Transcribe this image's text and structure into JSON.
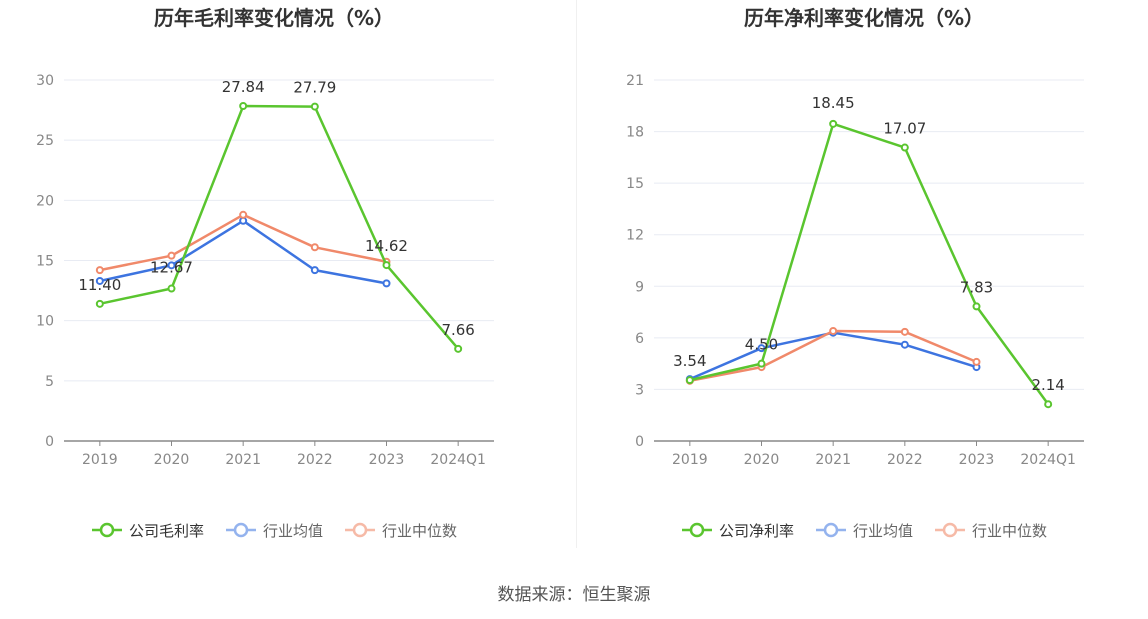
{
  "colors": {
    "company": "#5ac52f",
    "industry_avg": "#3d74e0",
    "industry_median": "#f0896a",
    "legend_avg": "#94b3ee",
    "legend_median": "#f6baa7",
    "axis": "#888888",
    "grid": "#e8ebf3",
    "label": "#333333"
  },
  "source_text": "数据来源：恒生聚源",
  "chart_data": [
    {
      "type": "line",
      "title": "历年毛利率变化情况（%）",
      "categories": [
        "2019",
        "2020",
        "2021",
        "2022",
        "2023",
        "2024Q1"
      ],
      "ylim": [
        0,
        30
      ],
      "yticks": [
        0,
        5,
        10,
        15,
        20,
        25,
        30
      ],
      "series": [
        {
          "name": "公司毛利率",
          "key": "company",
          "values": [
            11.4,
            12.67,
            27.84,
            27.79,
            14.62,
            7.66
          ],
          "labels": [
            "11.40",
            "12.67",
            "27.84",
            "27.79",
            "14.62",
            "7.66"
          ]
        },
        {
          "name": "行业均值",
          "key": "industry_avg",
          "values": [
            13.3,
            14.6,
            18.3,
            14.2,
            13.1,
            null
          ]
        },
        {
          "name": "行业中位数",
          "key": "industry_median",
          "values": [
            14.2,
            15.4,
            18.8,
            16.1,
            14.9,
            null
          ]
        }
      ]
    },
    {
      "type": "line",
      "title": "历年净利率变化情况（%）",
      "categories": [
        "2019",
        "2020",
        "2021",
        "2022",
        "2023",
        "2024Q1"
      ],
      "ylim": [
        0,
        21
      ],
      "yticks": [
        0,
        3,
        6,
        9,
        12,
        15,
        18,
        21
      ],
      "series": [
        {
          "name": "公司净利率",
          "key": "company",
          "values": [
            3.54,
            4.5,
            18.45,
            17.07,
            7.83,
            2.14
          ],
          "labels": [
            "3.54",
            "4.50",
            "18.45",
            "17.07",
            "7.83",
            "2.14"
          ]
        },
        {
          "name": "行业均值",
          "key": "industry_avg",
          "values": [
            3.6,
            5.4,
            6.3,
            5.6,
            4.3,
            null
          ]
        },
        {
          "name": "行业中位数",
          "key": "industry_median",
          "values": [
            3.5,
            4.3,
            6.4,
            6.35,
            4.6,
            null
          ]
        }
      ]
    }
  ]
}
